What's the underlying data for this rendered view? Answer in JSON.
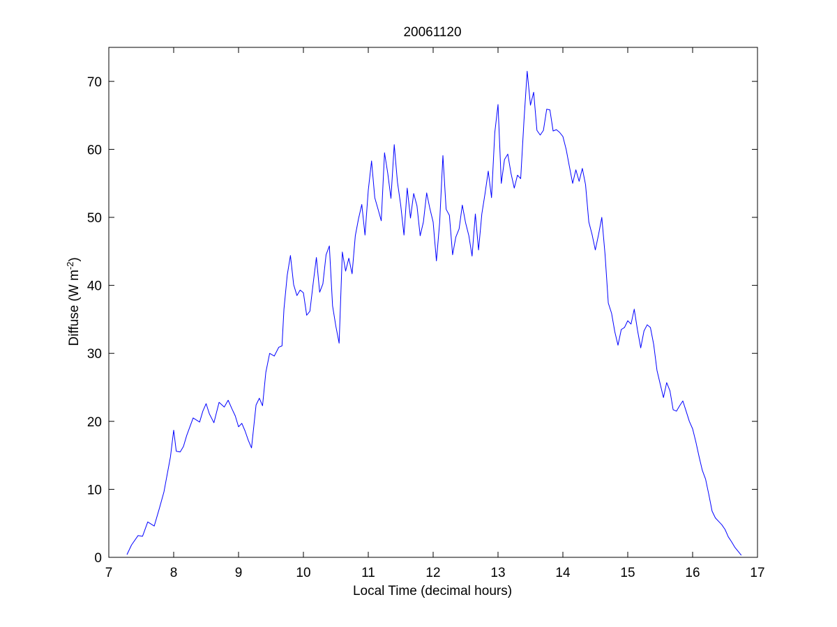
{
  "chart_data": {
    "type": "line",
    "title": "20061120",
    "xlabel": "Local Time (decimal hours)",
    "ylabel_text": "Diffuse (W m",
    "ylabel_superscript": "-2",
    "ylabel_close": ")",
    "xlim": [
      7,
      17
    ],
    "ylim": [
      0,
      75
    ],
    "xticks": [
      7,
      8,
      9,
      10,
      11,
      12,
      13,
      14,
      15,
      16,
      17
    ],
    "yticks": [
      0,
      10,
      20,
      30,
      40,
      50,
      60,
      70
    ],
    "grid": false,
    "legend": "none",
    "line_color": "#0000ff",
    "series": [
      {
        "x": [
          7.28,
          7.35,
          7.45,
          7.52,
          7.6,
          7.7,
          7.78,
          7.85,
          7.95,
          8.0,
          8.04,
          8.1,
          8.15,
          8.2,
          8.3,
          8.4,
          8.45,
          8.5,
          8.55,
          8.62,
          8.7,
          8.78,
          8.84,
          8.9,
          8.95,
          9.0,
          9.05,
          9.1,
          9.15,
          9.2,
          9.27,
          9.32,
          9.37,
          9.42,
          9.48,
          9.55,
          9.62,
          9.67,
          9.7,
          9.75,
          9.8,
          9.85,
          9.9,
          9.95,
          10.0,
          10.05,
          10.1,
          10.15,
          10.2,
          10.25,
          10.3,
          10.35,
          10.4,
          10.45,
          10.5,
          10.55,
          10.6,
          10.65,
          10.7,
          10.75,
          10.8,
          10.85,
          10.9,
          10.95,
          11.0,
          11.05,
          11.1,
          11.15,
          11.2,
          11.25,
          11.3,
          11.35,
          11.4,
          11.45,
          11.5,
          11.55,
          11.6,
          11.65,
          11.7,
          11.75,
          11.8,
          11.85,
          11.9,
          11.95,
          12.0,
          12.05,
          12.1,
          12.15,
          12.2,
          12.25,
          12.3,
          12.35,
          12.4,
          12.45,
          12.5,
          12.55,
          12.6,
          12.65,
          12.7,
          12.75,
          12.8,
          12.85,
          12.9,
          12.95,
          13.0,
          13.05,
          13.1,
          13.15,
          13.2,
          13.25,
          13.3,
          13.35,
          13.4,
          13.45,
          13.5,
          13.55,
          13.6,
          13.65,
          13.7,
          13.75,
          13.8,
          13.85,
          13.9,
          13.95,
          14.0,
          14.05,
          14.1,
          14.15,
          14.2,
          14.25,
          14.3,
          14.35,
          14.4,
          14.45,
          14.5,
          14.55,
          14.6,
          14.65,
          14.7,
          14.75,
          14.8,
          14.85,
          14.9,
          14.95,
          15.0,
          15.05,
          15.1,
          15.15,
          15.2,
          15.25,
          15.3,
          15.35,
          15.4,
          15.45,
          15.5,
          15.55,
          15.6,
          15.65,
          15.7,
          15.75,
          15.8,
          15.85,
          15.9,
          15.95,
          16.0,
          16.05,
          16.1,
          16.15,
          16.2,
          16.25,
          16.3,
          16.35,
          16.4,
          16.45,
          16.5,
          16.55,
          16.6,
          16.65,
          16.7,
          16.75
        ],
        "y": [
          0.4,
          1.8,
          3.2,
          3.1,
          5.2,
          4.6,
          7.2,
          9.6,
          14.8,
          18.7,
          15.6,
          15.5,
          16.3,
          17.9,
          20.5,
          19.9,
          21.5,
          22.6,
          21.1,
          19.8,
          22.8,
          22.1,
          23.1,
          21.8,
          20.8,
          19.2,
          19.7,
          18.6,
          17.2,
          16.1,
          22.4,
          23.4,
          22.3,
          27.2,
          30.0,
          29.6,
          30.9,
          31.1,
          36.5,
          41.5,
          44.4,
          40.1,
          38.5,
          39.3,
          38.9,
          35.6,
          36.2,
          40.3,
          44.1,
          39.0,
          40.2,
          44.5,
          45.8,
          37.0,
          34.0,
          31.5,
          44.9,
          42.1,
          44.0,
          41.7,
          47.3,
          49.8,
          51.9,
          47.4,
          54.0,
          58.3,
          52.9,
          51.2,
          49.5,
          59.5,
          56.5,
          52.8,
          60.7,
          55.2,
          51.8,
          47.4,
          54.3,
          49.9,
          53.5,
          51.7,
          47.3,
          49.3,
          53.6,
          51.3,
          49.3,
          43.6,
          49.2,
          59.1,
          51.2,
          50.3,
          44.5,
          47.1,
          48.3,
          51.8,
          49.2,
          47.3,
          44.3,
          50.5,
          45.2,
          50.5,
          53.5,
          56.8,
          52.9,
          62.5,
          66.6,
          55.0,
          58.5,
          59.3,
          56.5,
          54.3,
          56.2,
          55.7,
          64.2,
          71.5,
          66.5,
          68.4,
          62.8,
          62.1,
          62.8,
          65.9,
          65.8,
          62.7,
          62.9,
          62.5,
          61.9,
          60.0,
          57.5,
          55.0,
          57.0,
          55.3,
          57.2,
          54.8,
          49.3,
          47.5,
          45.2,
          47.5,
          50.0,
          44.5,
          37.4,
          35.9,
          33.2,
          31.2,
          33.5,
          33.8,
          34.8,
          34.3,
          36.5,
          33.4,
          30.8,
          33.3,
          34.2,
          33.8,
          31.3,
          27.5,
          25.5,
          23.5,
          25.7,
          24.5,
          21.7,
          21.5,
          22.3,
          23.0,
          21.5,
          20.0,
          18.9,
          17.0,
          14.8,
          12.8,
          11.5,
          9.2,
          6.8,
          5.8,
          5.3,
          4.8,
          4.1,
          3.0,
          2.3,
          1.5,
          0.9,
          0.3
        ]
      }
    ]
  }
}
